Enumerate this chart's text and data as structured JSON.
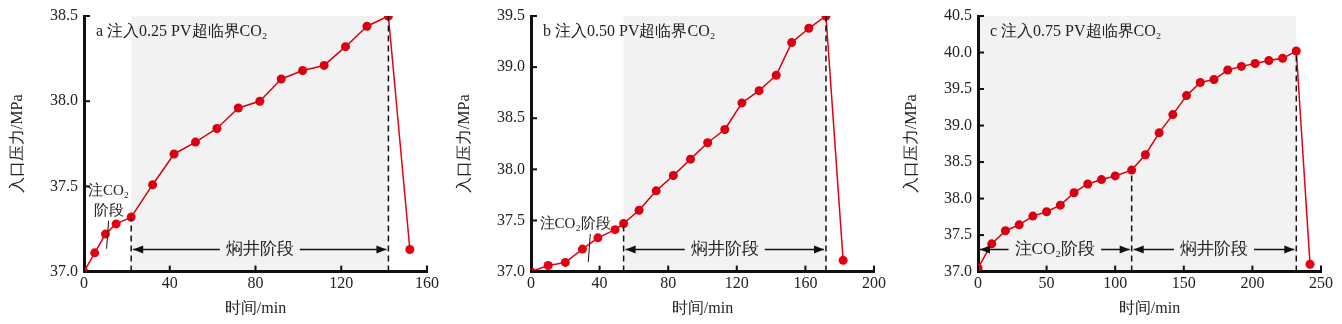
{
  "chart_data": [
    {
      "type": "line",
      "title": "a 注入0.25 PV超临界CO₂",
      "xlabel": "时间/min",
      "ylabel": "入口压力/MPa",
      "marker": "circle",
      "line_style": "solid",
      "grid": false,
      "legend": false,
      "x": [
        0,
        5,
        10,
        15,
        22,
        32,
        42,
        52,
        62,
        72,
        82,
        92,
        102,
        112,
        122,
        132,
        142,
        152
      ],
      "series": [
        {
          "color": "#e60012",
          "values": [
            37.0,
            37.11,
            37.22,
            37.28,
            37.32,
            37.51,
            37.69,
            37.76,
            37.84,
            37.96,
            38.0,
            38.13,
            38.18,
            38.21,
            38.32,
            38.44,
            38.5,
            37.13
          ]
        }
      ],
      "xlim": [
        0,
        160
      ],
      "xticks": [
        0,
        40,
        80,
        120,
        160
      ],
      "ylim": [
        37,
        38.5
      ],
      "yticks": [
        {
          "value": 37,
          "label": "37.0"
        },
        {
          "value": 37.5,
          "label": "37.5"
        },
        {
          "value": 38,
          "label": "38.0"
        },
        {
          "value": 38.5,
          "label": "38.5"
        }
      ],
      "ref_lines": [
        {
          "axis": "x",
          "value": 22,
          "line_style": "dashed"
        },
        {
          "axis": "x",
          "value": 142,
          "line_style": "dashed"
        }
      ],
      "bands": [
        {
          "axis": "x",
          "from": 22,
          "to": 142,
          "label": "焖井阶段"
        }
      ],
      "annotations": [
        {
          "text": "注CO₂\n阶段",
          "x": 11,
          "y": 37.24
        }
      ]
    },
    {
      "type": "line",
      "title": "b 注入0.50 PV超临界CO₂",
      "xlabel": "时间/min",
      "ylabel": "入口压力/MPa",
      "marker": "circle",
      "line_style": "solid",
      "grid": false,
      "legend": false,
      "x": [
        0,
        10,
        20,
        30,
        39,
        49,
        54,
        63,
        73,
        83,
        93,
        103,
        113,
        123,
        133,
        143,
        152,
        162,
        172,
        182
      ],
      "series": [
        {
          "color": "#e60012",
          "values": [
            37.0,
            37.06,
            37.09,
            37.22,
            37.33,
            37.41,
            37.47,
            37.6,
            37.79,
            37.94,
            38.1,
            38.26,
            38.39,
            38.65,
            38.77,
            38.92,
            39.24,
            39.38,
            39.5,
            37.11
          ]
        }
      ],
      "xlim": [
        0,
        200
      ],
      "xticks": [
        0,
        40,
        80,
        120,
        160,
        200
      ],
      "ylim": [
        37,
        39.5
      ],
      "yticks": [
        {
          "value": 37,
          "label": "37.0"
        },
        {
          "value": 37.5,
          "label": "37.5"
        },
        {
          "value": 38,
          "label": "38.0"
        },
        {
          "value": 38.5,
          "label": "38.5"
        },
        {
          "value": 39,
          "label": "39.0"
        },
        {
          "value": 39.5,
          "label": "39.5"
        }
      ],
      "ref_lines": [
        {
          "axis": "x",
          "value": 54,
          "line_style": "dashed"
        },
        {
          "axis": "x",
          "value": 172,
          "line_style": "dashed"
        }
      ],
      "bands": [
        {
          "axis": "x",
          "from": 54,
          "to": 172,
          "label": "焖井阶段"
        }
      ],
      "annotations": [
        {
          "text": "注CO₂阶段",
          "x": 34,
          "y": 37.27
        }
      ]
    },
    {
      "type": "line",
      "title": "c 注入0.75 PV超临界CO₂",
      "xlabel": "时间/min",
      "ylabel": "入口压力/MPa",
      "marker": "circle",
      "line_style": "solid",
      "grid": false,
      "legend": false,
      "x": [
        0,
        10,
        20,
        30,
        40,
        50,
        60,
        70,
        80,
        90,
        100,
        112,
        122,
        132,
        142,
        152,
        162,
        172,
        182,
        192,
        202,
        212,
        222,
        232,
        242
      ],
      "series": [
        {
          "color": "#e60012",
          "values": [
            37.05,
            37.38,
            37.56,
            37.64,
            37.76,
            37.82,
            37.91,
            38.08,
            38.2,
            38.26,
            38.31,
            38.39,
            38.6,
            38.9,
            39.15,
            39.41,
            39.59,
            39.63,
            39.76,
            39.81,
            39.85,
            39.89,
            39.92,
            40.02,
            37.1
          ]
        }
      ],
      "xlim": [
        0,
        250
      ],
      "xticks": [
        0,
        50,
        100,
        150,
        200,
        250
      ],
      "ylim": [
        37,
        40.5
      ],
      "yticks": [
        {
          "value": 37,
          "label": "37.0"
        },
        {
          "value": 37.5,
          "label": "37.5"
        },
        {
          "value": 38,
          "label": "38.0"
        },
        {
          "value": 38.5,
          "label": "38.5"
        },
        {
          "value": 39,
          "label": "39.0"
        },
        {
          "value": 39.5,
          "label": "39.5"
        },
        {
          "value": 40,
          "label": "40.0"
        },
        {
          "value": 40.5,
          "label": "40.5"
        }
      ],
      "ref_lines": [
        {
          "axis": "x",
          "value": 112,
          "line_style": "dashed"
        },
        {
          "axis": "x",
          "value": 232,
          "line_style": "dashed"
        }
      ],
      "bands": [
        {
          "axis": "x",
          "from": 0,
          "to": 112,
          "label": "注CO₂阶段"
        },
        {
          "axis": "x",
          "from": 112,
          "to": 232,
          "label": "焖井阶段"
        }
      ]
    }
  ]
}
